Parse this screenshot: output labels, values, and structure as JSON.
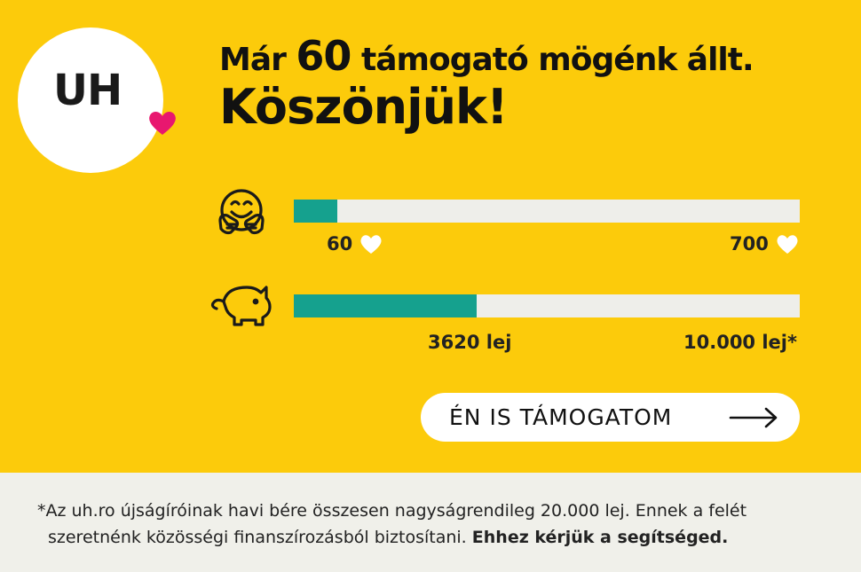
{
  "logo": {
    "text": "UH",
    "heart_color": "#e8176f"
  },
  "headline": {
    "line1_prefix": "Már",
    "supporters_count": "60",
    "line1_suffix": "támogató mögénk állt.",
    "line2": "Köszönjük!"
  },
  "supporters_progress": {
    "icon": "hug-emoji-icon",
    "current": 60,
    "goal": 700,
    "current_label": "60",
    "goal_label": "700",
    "fraction": 0.0857
  },
  "money_progress": {
    "icon": "piggy-bank-icon",
    "current": 3620,
    "goal": 10000,
    "current_label": "3620 lej",
    "goal_label": "10.000 lej*",
    "fraction": 0.362
  },
  "cta": {
    "label": "ÉN IS TÁMOGATOM",
    "icon": "arrow-right-icon"
  },
  "footnote": {
    "line1": "*Az uh.ro újságíróinak havi bére összesen nagyságrendileg 20.000 lej. Ennek a felét",
    "line2_plain": "szeretnénk közösségi finanszírozásból biztosítani.",
    "line2_bold": "Ehhez kérjük a segítséged."
  },
  "colors": {
    "background": "#fccb0b",
    "progress_fill": "#15a18e",
    "progress_track": "#eeeeea",
    "footer_bg": "#f0f0ea"
  }
}
